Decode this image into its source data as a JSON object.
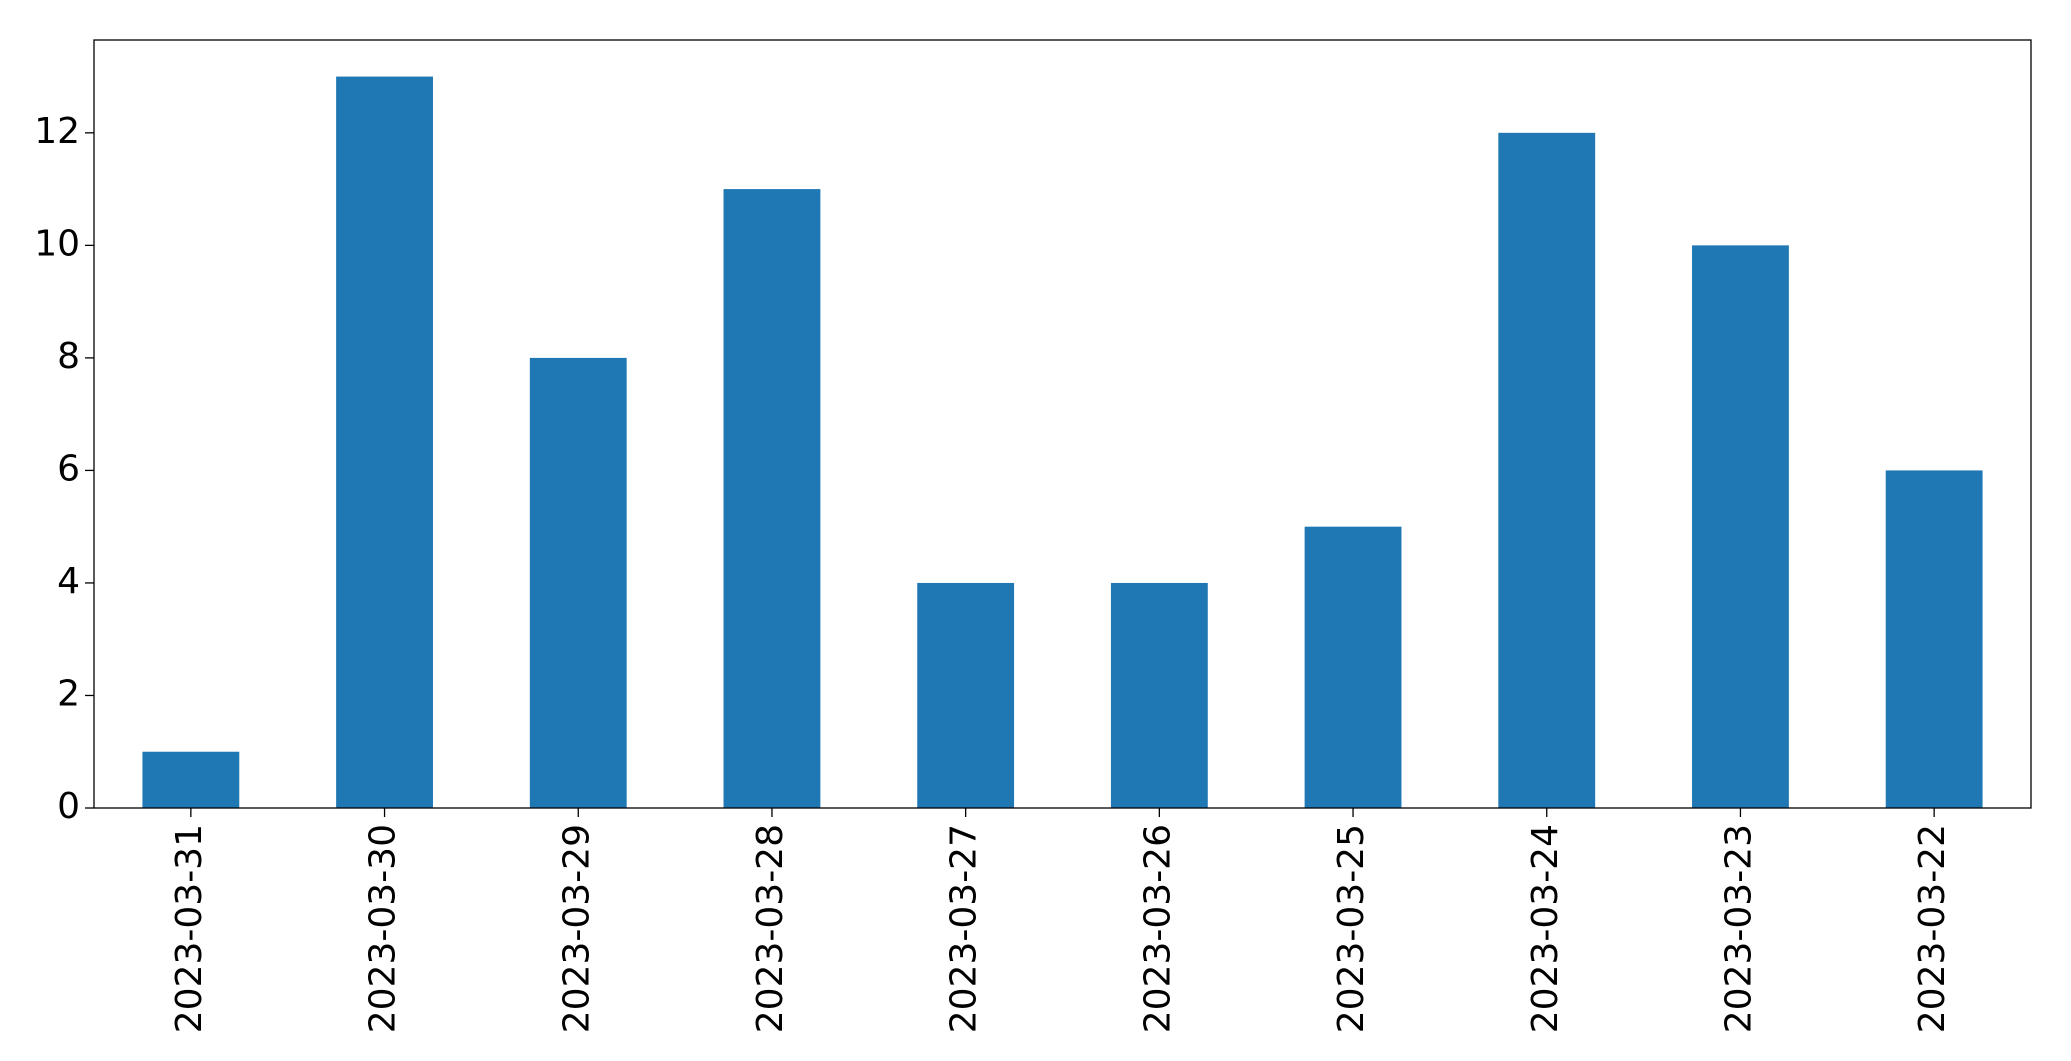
{
  "chart_data": {
    "type": "bar",
    "categories": [
      "2023-03-31",
      "2023-03-30",
      "2023-03-29",
      "2023-03-28",
      "2023-03-27",
      "2023-03-26",
      "2023-03-25",
      "2023-03-24",
      "2023-03-23",
      "2023-03-22"
    ],
    "values": [
      1,
      13,
      8,
      11,
      4,
      4,
      5,
      12,
      10,
      6
    ],
    "color": "#1f77b4",
    "ylim": [
      0,
      13.65
    ],
    "yticks": [
      0,
      2,
      4,
      6,
      8,
      10,
      12
    ],
    "grid": false
  }
}
